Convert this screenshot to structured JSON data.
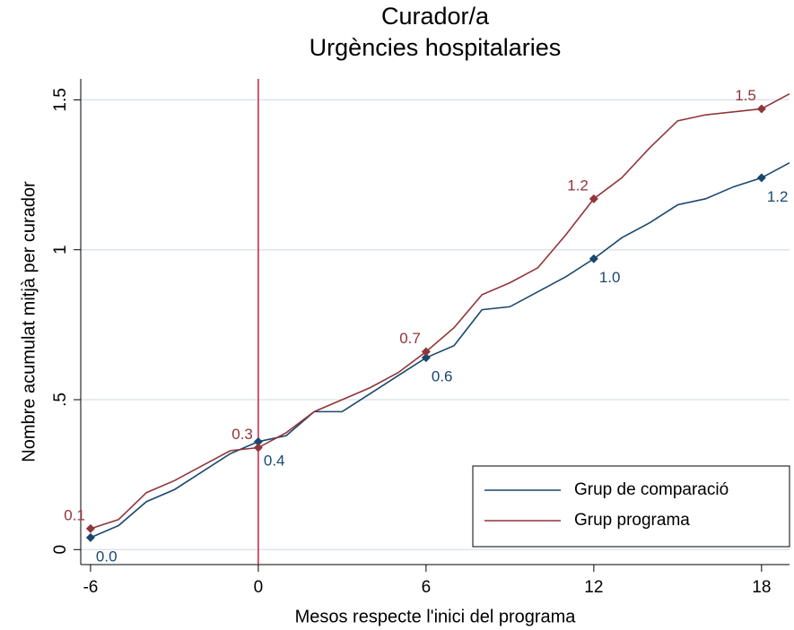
{
  "chart_data": {
    "type": "line",
    "title": "Curador/a",
    "subtitle": "Urgències hospitalaries",
    "xlabel": "Mesos respecte l'inici del programa",
    "ylabel": "Nombre acumulat mitjà per curador",
    "x": [
      -6,
      -5,
      -4,
      -3,
      -2,
      -1,
      0,
      1,
      2,
      3,
      4,
      5,
      6,
      7,
      8,
      9,
      10,
      11,
      12,
      13,
      14,
      15,
      16,
      17,
      18,
      19
    ],
    "series": [
      {
        "name": "Grup de comparació",
        "color": "#1a476f",
        "values": [
          0.04,
          0.08,
          0.16,
          0.2,
          0.26,
          0.32,
          0.36,
          0.38,
          0.46,
          0.46,
          0.52,
          0.58,
          0.64,
          0.68,
          0.8,
          0.81,
          0.86,
          0.91,
          0.97,
          1.04,
          1.09,
          1.15,
          1.17,
          1.21,
          1.24,
          1.29
        ],
        "value_labels": [
          "0.0",
          null,
          null,
          null,
          null,
          null,
          "0.4",
          null,
          null,
          null,
          null,
          null,
          "0.6",
          null,
          null,
          null,
          null,
          null,
          "1.0",
          null,
          null,
          null,
          null,
          null,
          "1.2",
          null
        ]
      },
      {
        "name": "Grup programa",
        "color": "#90353b",
        "values": [
          0.07,
          0.1,
          0.19,
          0.23,
          0.28,
          0.33,
          0.34,
          0.39,
          0.46,
          0.5,
          0.54,
          0.59,
          0.66,
          0.74,
          0.85,
          0.89,
          0.94,
          1.05,
          1.17,
          1.24,
          1.34,
          1.43,
          1.45,
          1.46,
          1.47,
          1.52
        ],
        "value_labels": [
          "0.1",
          null,
          null,
          null,
          null,
          null,
          "0.3",
          null,
          null,
          null,
          null,
          null,
          "0.7",
          null,
          null,
          null,
          null,
          null,
          "1.2",
          null,
          null,
          null,
          null,
          null,
          "1.5",
          null
        ]
      }
    ],
    "vline": 0,
    "vline_color": "#c8203e",
    "xlim": [
      -6.35,
      19.0
    ],
    "ylim": [
      -0.05,
      1.57
    ],
    "xticks": [
      -6,
      0,
      6,
      12,
      18
    ],
    "yticks": [
      0,
      {
        "value": 0.5,
        "label": ".5"
      },
      1,
      1.5
    ],
    "grid": true,
    "legend": "lower right"
  }
}
